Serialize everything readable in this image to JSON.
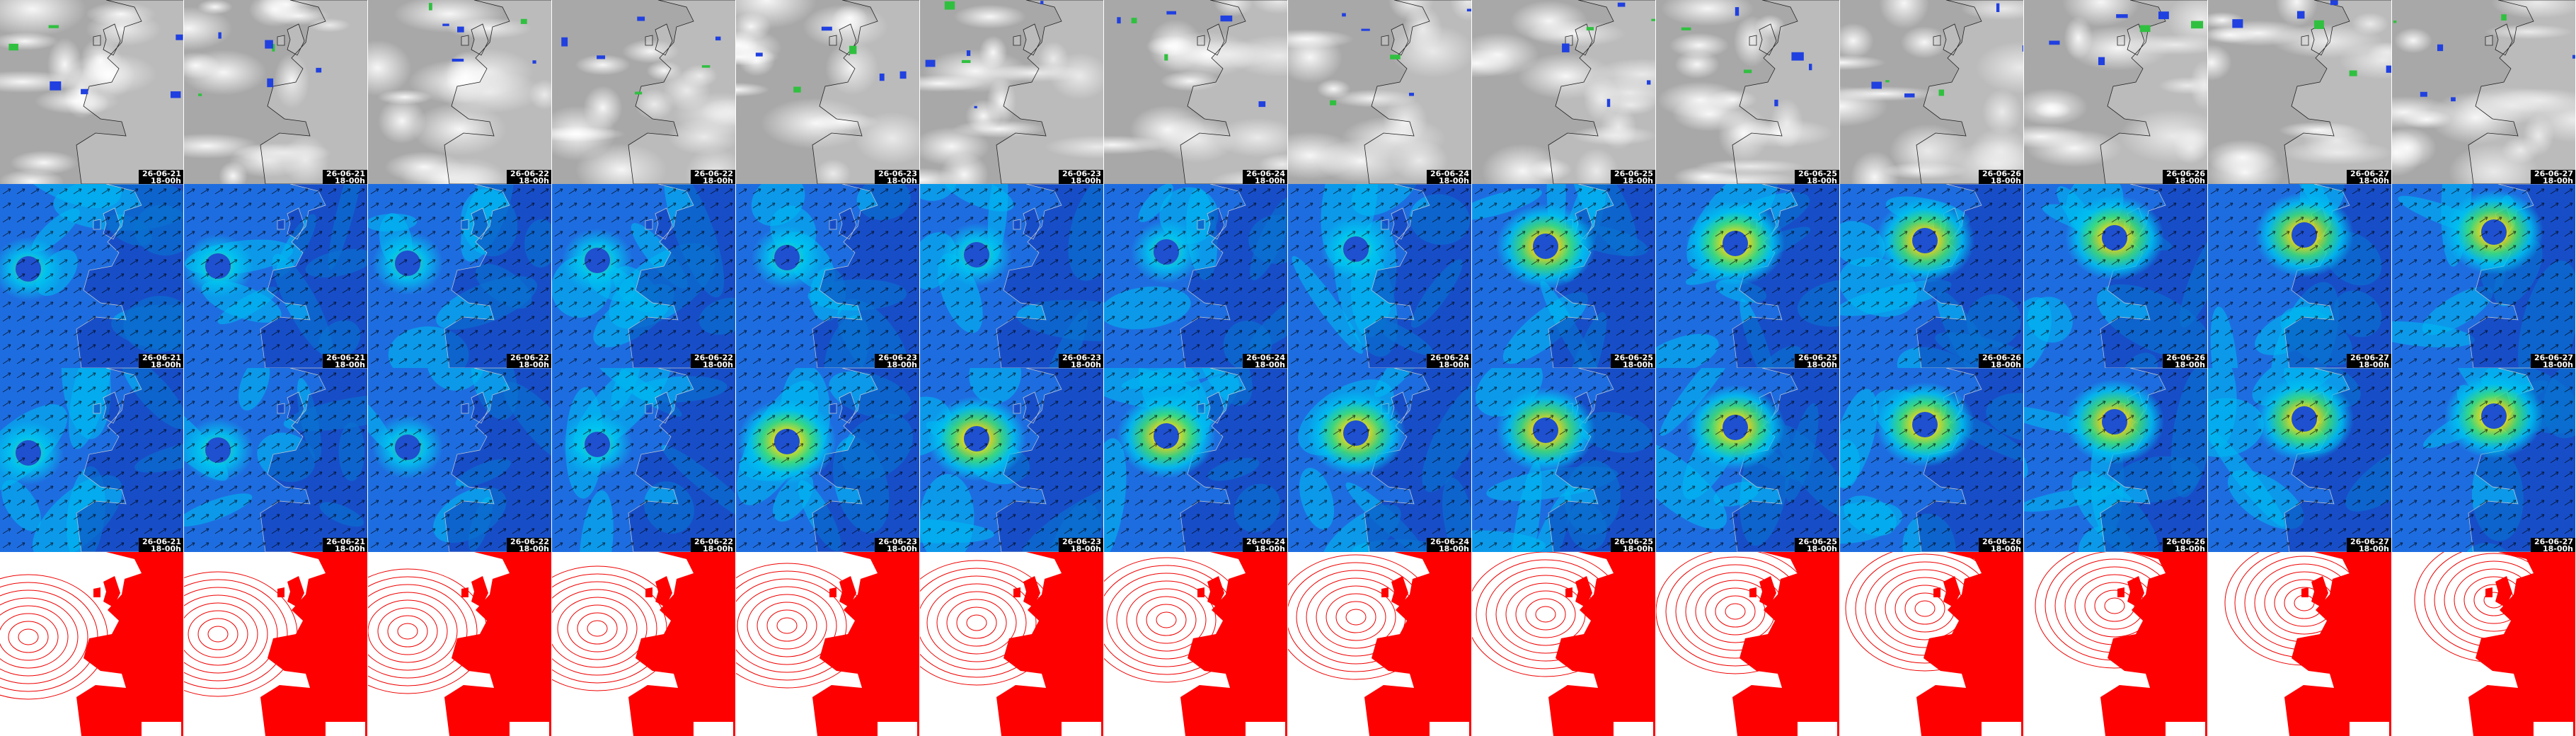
{
  "panels": [
    {
      "date": "26-06-21",
      "time": "18-00h"
    },
    {
      "date": "26-06-21",
      "time": "18-00h"
    },
    {
      "date": "26-06-22",
      "time": "18-00h"
    },
    {
      "date": "26-06-22",
      "time": "18-00h"
    },
    {
      "date": "26-06-23",
      "time": "18-00h"
    },
    {
      "date": "26-06-23",
      "time": "18-00h"
    },
    {
      "date": "26-06-24",
      "time": "18-00h"
    },
    {
      "date": "26-06-24",
      "time": "18-00h"
    },
    {
      "date": "26-06-25",
      "time": "18-00h"
    },
    {
      "date": "26-06-25",
      "time": "18-00h"
    },
    {
      "date": "26-06-26",
      "time": "18-00h"
    },
    {
      "date": "26-06-26",
      "time": "18-00h"
    },
    {
      "date": "26-06-27",
      "time": "18-00h"
    },
    {
      "date": "26-06-27",
      "time": "18-00h"
    }
  ]
}
